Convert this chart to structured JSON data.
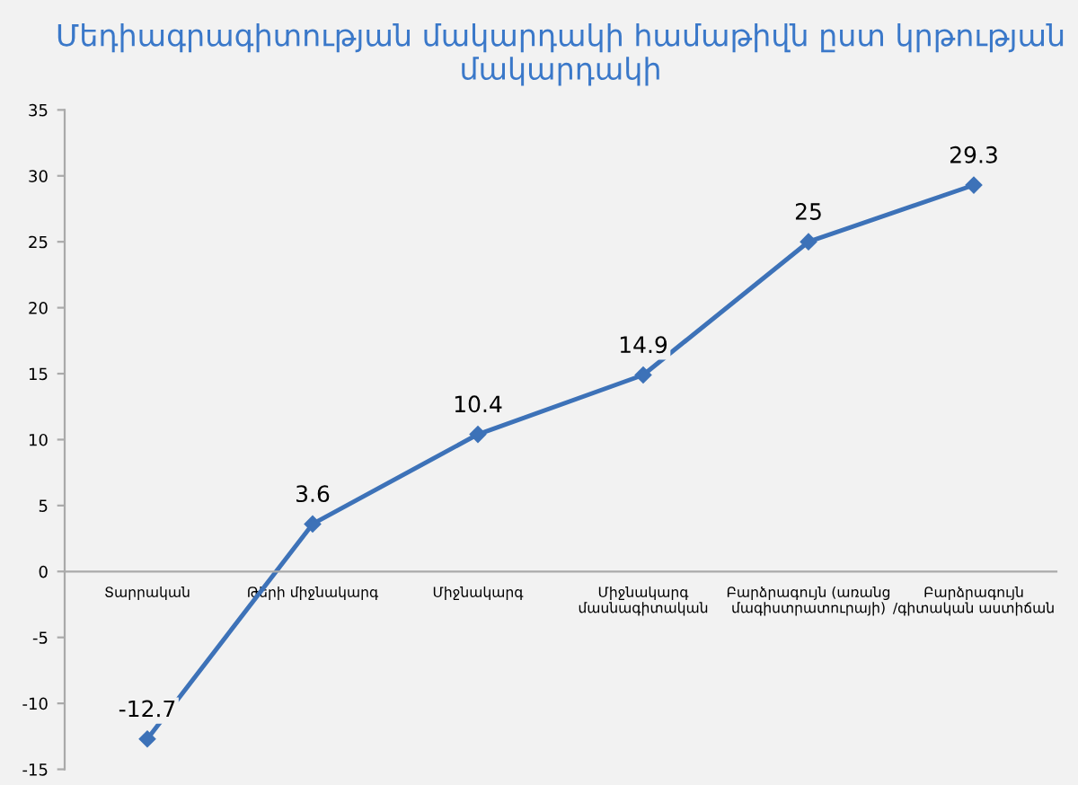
{
  "chart_data": {
    "type": "line",
    "title": "Մեդիագրագիտության մակարդակի համաթիվն ըստ կրթության մակարդակի",
    "categories": [
      "Տարրական",
      "Թերի միջնակարգ",
      "Միջնակարգ",
      "Միջնակարգ\nմասնագիտական",
      "Բարձրագույն (առանց\nմագիստրատուրայի)",
      "Բարձրագույն\n/գիտական աստիճան"
    ],
    "series": [
      {
        "color": "#3d72b8",
        "values": [
          -12.7,
          3.6,
          10.4,
          14.9,
          25,
          29.3
        ]
      }
    ],
    "ylim": [
      -15,
      35
    ],
    "yticks": [
      -15,
      -10,
      -5,
      0,
      5,
      10,
      15,
      20,
      25,
      30,
      35
    ],
    "data_labels": true,
    "marker": "diamond",
    "line_style": "solid",
    "grid": false
  }
}
